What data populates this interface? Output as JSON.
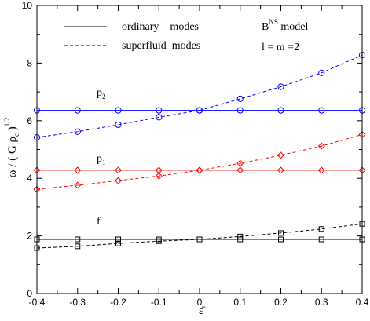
{
  "chart_data": {
    "type": "line",
    "xlabel": "ε̄",
    "ylabel_main": "ω / ( G ρ",
    "ylabel_sub": "c",
    "ylabel_close": " )",
    "ylabel_sup": "1/2",
    "xlim": [
      -0.4,
      0.4
    ],
    "ylim": [
      0,
      10
    ],
    "x_ticks": [
      -0.4,
      -0.3,
      -0.2,
      -0.1,
      0,
      0.1,
      0.2,
      0.3,
      0.4
    ],
    "x_tick_labels": [
      "-0.4",
      "-0.3",
      "-0.2",
      "-0.1",
      "0",
      "0.1",
      "0.2",
      "0.3",
      "0.4"
    ],
    "y_ticks": [
      0,
      2,
      4,
      6,
      8,
      10
    ],
    "y_tick_labels": [
      "0",
      "2",
      "4",
      "6",
      "8",
      "10"
    ],
    "legend": {
      "placement": "top-left",
      "entries": [
        {
          "label": "ordinary    modes",
          "style": "solid"
        },
        {
          "label": "superfluid  modes",
          "style": "dashed"
        }
      ]
    },
    "annotations": {
      "model_main": "B",
      "model_sup": "NS",
      "model_rest": " model",
      "lm": "l = m =2",
      "p2_main": "p",
      "p2_sub": "2",
      "p1_main": "p",
      "p1_sub": "1",
      "f": "f"
    },
    "x": [
      -0.4,
      -0.3,
      -0.2,
      -0.1,
      0,
      0.1,
      0.2,
      0.3,
      0.4
    ],
    "series": [
      {
        "mode": "p2",
        "kind": "ordinary",
        "marker": "circle",
        "color": "#0000ff",
        "values": [
          6.36,
          6.36,
          6.36,
          6.36,
          6.36,
          6.36,
          6.36,
          6.36,
          6.36
        ]
      },
      {
        "mode": "p2",
        "kind": "superfluid",
        "marker": "circle",
        "color": "#0000ff",
        "values": [
          5.42,
          5.62,
          5.86,
          6.12,
          6.36,
          6.76,
          7.18,
          7.66,
          8.28
        ]
      },
      {
        "mode": "p1",
        "kind": "ordinary",
        "marker": "diamond",
        "color": "#ff0000",
        "values": [
          4.28,
          4.28,
          4.28,
          4.28,
          4.28,
          4.28,
          4.28,
          4.28,
          4.28
        ]
      },
      {
        "mode": "p1",
        "kind": "superfluid",
        "marker": "diamond",
        "color": "#ff0000",
        "values": [
          3.62,
          3.76,
          3.92,
          4.08,
          4.28,
          4.52,
          4.8,
          5.12,
          5.52
        ]
      },
      {
        "mode": "f",
        "kind": "ordinary",
        "marker": "square",
        "color": "#000000",
        "values": [
          1.88,
          1.88,
          1.88,
          1.88,
          1.88,
          1.88,
          1.88,
          1.88,
          1.88
        ]
      },
      {
        "mode": "f",
        "kind": "superfluid",
        "marker": "square",
        "color": "#000000",
        "values": [
          1.58,
          1.64,
          1.74,
          1.82,
          1.88,
          1.98,
          2.1,
          2.24,
          2.42
        ]
      }
    ]
  }
}
